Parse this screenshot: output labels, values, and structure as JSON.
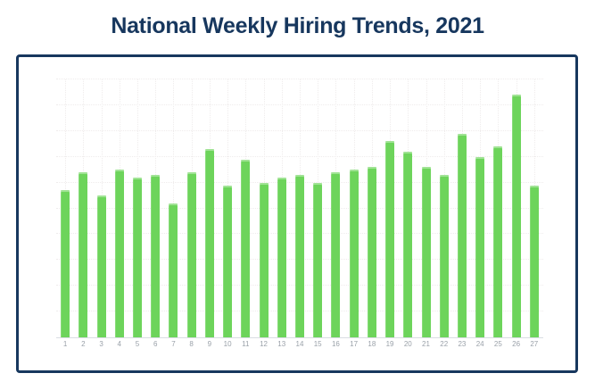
{
  "header": {
    "title": "National Weekly Hiring Trends, 2021"
  },
  "chart_data": {
    "type": "bar",
    "title": "National Weekly Hiring Trends, 2021",
    "categories": [
      "1",
      "2",
      "3",
      "4",
      "5",
      "6",
      "7",
      "8",
      "9",
      "10",
      "11",
      "12",
      "13",
      "14",
      "15",
      "16",
      "17",
      "18",
      "19",
      "20",
      "21",
      "22",
      "23",
      "24",
      "25",
      "26",
      "27"
    ],
    "values": [
      57,
      64,
      55,
      65,
      62,
      63,
      52,
      64,
      73,
      59,
      69,
      60,
      62,
      63,
      60,
      64,
      65,
      66,
      76,
      72,
      66,
      63,
      79,
      70,
      74,
      94,
      59
    ],
    "xlabel": "",
    "ylabel": "",
    "ylim": [
      0,
      100
    ],
    "y_tick_labels_visible": false,
    "x_tick_labels_visible": true,
    "legend": "none",
    "grid": {
      "visible": true,
      "rows": 10,
      "style": "dotted",
      "vertical_line_per_category": true
    },
    "colors": {
      "bar": "#6dd45b",
      "title": "#17375e",
      "card_border": "#17375e",
      "grid_line": "#efecec",
      "axis_line": "#d9dde2",
      "tick_label": "#9aa1a9"
    }
  }
}
